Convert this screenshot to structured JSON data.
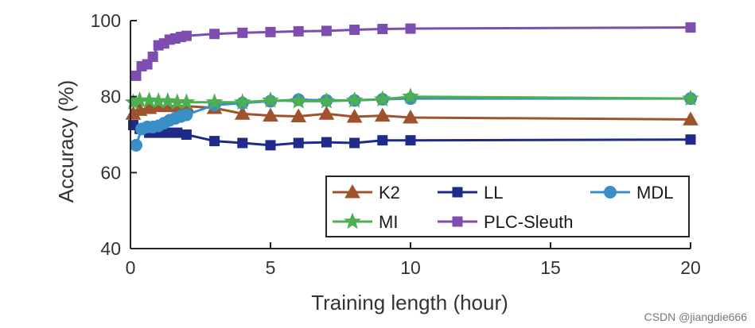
{
  "chart_data": {
    "type": "line",
    "title": "",
    "xlabel": "Training length (hour)",
    "ylabel": "Accuracy (%)",
    "xlim": [
      0,
      20
    ],
    "ylim": [
      40,
      100
    ],
    "xticks": [
      0,
      5,
      10,
      15,
      20
    ],
    "yticks": [
      40,
      60,
      80,
      100
    ],
    "grid": false,
    "legend_position": "lower-right",
    "series": [
      {
        "name": "K2",
        "color": "#A0522D",
        "marker": "triangle",
        "x": [
          0.1,
          0.33,
          0.67,
          1,
          1.33,
          1.67,
          2,
          3,
          4,
          5,
          6,
          7,
          8,
          9,
          10,
          20
        ],
        "y": [
          75.5,
          76.5,
          77.0,
          77.5,
          77.5,
          77.5,
          77.5,
          77.0,
          75.5,
          75.0,
          74.8,
          75.5,
          74.7,
          75.0,
          74.5,
          74.0
        ]
      },
      {
        "name": "LL",
        "color": "#1F2A8A",
        "marker": "square",
        "x": [
          0.1,
          0.33,
          0.67,
          1,
          1.33,
          1.67,
          2,
          3,
          4,
          5,
          6,
          7,
          8,
          9,
          10,
          20
        ],
        "y": [
          72.5,
          71.5,
          70.5,
          70.5,
          70.5,
          70.5,
          70.0,
          68.3,
          67.8,
          67.2,
          67.8,
          68.0,
          67.8,
          68.5,
          68.5,
          68.7
        ]
      },
      {
        "name": "MDL",
        "color": "#3A8FC7",
        "marker": "circle",
        "x": [
          0.2,
          0.4,
          0.6,
          0.8,
          1,
          1.2,
          1.4,
          1.6,
          1.8,
          2,
          3,
          4,
          5,
          6,
          7,
          8,
          9,
          10,
          20
        ],
        "y": [
          67.2,
          71.5,
          72.0,
          72.0,
          72.3,
          73.0,
          73.8,
          74.3,
          74.8,
          75.2,
          77.8,
          78.3,
          78.8,
          79.2,
          79.0,
          79.0,
          79.3,
          79.5,
          79.5
        ]
      },
      {
        "name": "MI",
        "color": "#4CAF50",
        "marker": "star",
        "x": [
          0.1,
          0.33,
          0.67,
          1,
          1.33,
          1.67,
          2,
          3,
          4,
          5,
          6,
          7,
          8,
          9,
          10,
          20
        ],
        "y": [
          78.5,
          79.0,
          79.0,
          78.8,
          78.8,
          78.5,
          78.5,
          78.5,
          78.5,
          79.0,
          78.8,
          78.8,
          79.0,
          79.3,
          80.0,
          79.5
        ]
      },
      {
        "name": "PLC-Sleuth",
        "color": "#7D4DB0",
        "marker": "square",
        "x": [
          0.2,
          0.4,
          0.6,
          0.8,
          1,
          1.2,
          1.4,
          1.6,
          1.8,
          2,
          3,
          4,
          5,
          6,
          7,
          8,
          9,
          10,
          20
        ],
        "y": [
          85.5,
          88.0,
          88.5,
          90.5,
          93.5,
          94.0,
          95.0,
          95.3,
          95.7,
          96.0,
          96.5,
          96.8,
          97.0,
          97.2,
          97.3,
          97.6,
          97.8,
          97.9,
          98.2
        ]
      }
    ]
  },
  "watermark": "CSDN @jiangdie666"
}
